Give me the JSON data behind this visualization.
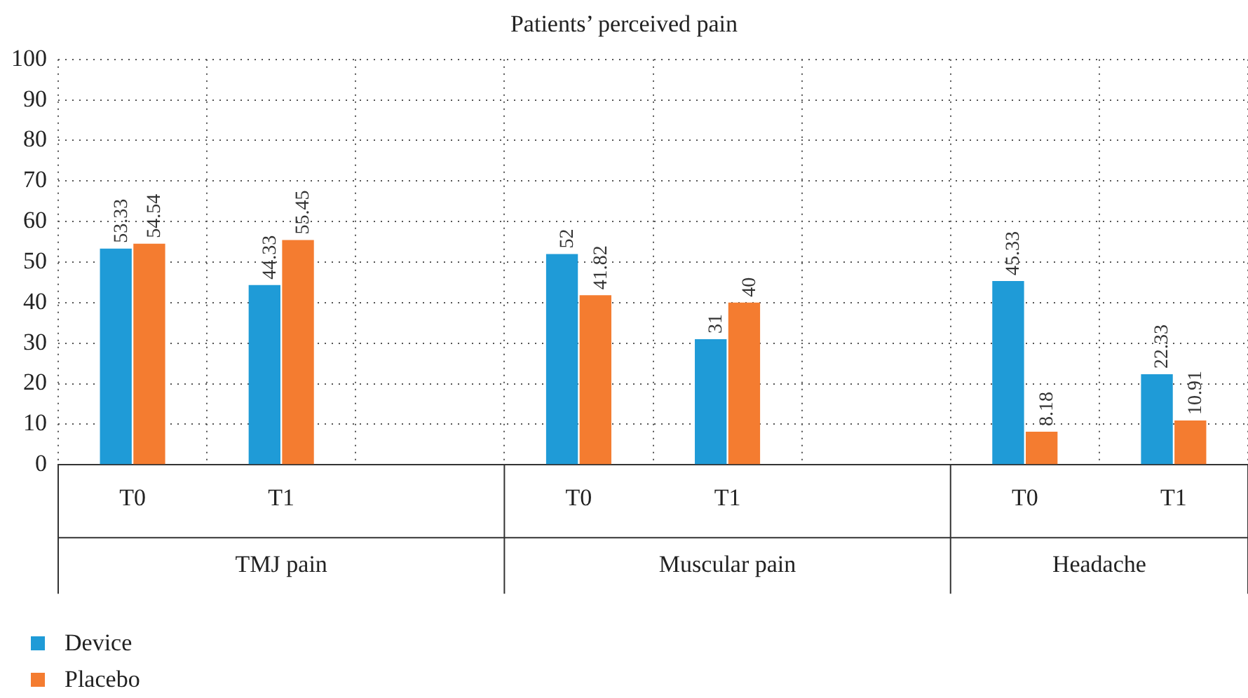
{
  "chart_data": {
    "type": "bar",
    "title": "Patients’ perceived pain",
    "categories": [
      "T0",
      "T1",
      null,
      "T0",
      "T1",
      null,
      "T0",
      "T1"
    ],
    "series": [
      {
        "name": "Device",
        "color": "#1f9bd7",
        "values": [
          53.33,
          44.33,
          null,
          52,
          31,
          null,
          45.33,
          22.33
        ]
      },
      {
        "name": "Placebo",
        "color": "#f47c30",
        "values": [
          54.54,
          55.45,
          null,
          41.82,
          40,
          null,
          8.18,
          10.91
        ]
      }
    ],
    "annotations": [
      "TMJ pain",
      "Muscular pain",
      "Headache"
    ],
    "ylim": [
      0,
      100
    ],
    "yticks": [
      0,
      10,
      20,
      30,
      40,
      50,
      60,
      70,
      80,
      90,
      100
    ],
    "grid": true,
    "legend": "bottom left",
    "data_labels": true
  }
}
